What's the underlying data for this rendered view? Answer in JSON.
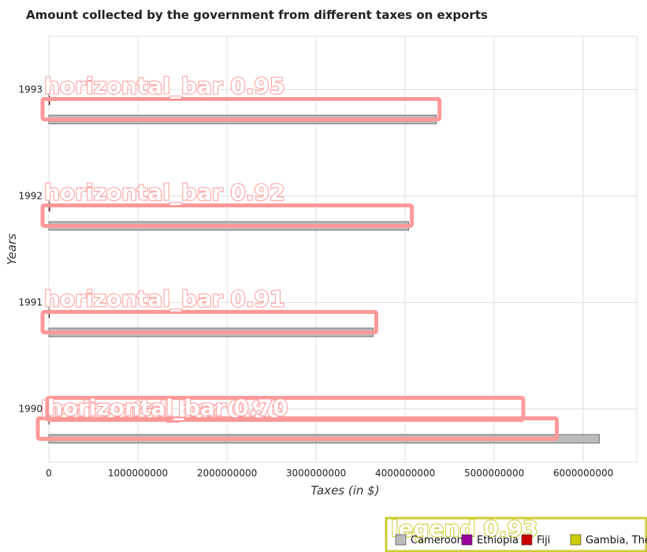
{
  "chart_data": {
    "type": "bar",
    "orientation": "horizontal",
    "title": "Amount collected by the government from different taxes on exports",
    "xlabel": "Taxes (in $)",
    "ylabel": "Years",
    "xlim": [
      0,
      6600000000
    ],
    "x_ticks": [
      "0",
      "1000000000",
      "2000000000",
      "3000000000",
      "4000000000",
      "5000000000",
      "6000000000"
    ],
    "categories": [
      "1990",
      "1991",
      "1992",
      "1993"
    ],
    "series": [
      {
        "name": "Cameroon",
        "color": "#bbbbbb",
        "values": [
          6180000000,
          3640000000,
          4040000000,
          4350000000
        ]
      },
      {
        "name": "Ethiopia",
        "color": "#990099",
        "values": [
          0,
          0,
          0,
          0
        ]
      },
      {
        "name": "Fiji",
        "color": "#cc0000",
        "values": [
          5000000,
          8000000,
          12000000,
          10000000
        ]
      },
      {
        "name": "Gambia, The",
        "color": "#cccc00",
        "values": [
          1000000,
          1000000,
          1000000,
          2000000
        ]
      }
    ],
    "grid": true,
    "legend_position": "bottom-right"
  },
  "overlays": {
    "bars": [
      {
        "label": "horizontal_bar  0.86"
      },
      {
        "label": "horizontal_bar  0.70"
      },
      {
        "label": "horizontal_bar  0.91"
      },
      {
        "label": "horizontal_bar  0.92"
      },
      {
        "label": "horizontal_bar  0.95"
      }
    ],
    "legend": {
      "label": "legend  0.93"
    }
  }
}
